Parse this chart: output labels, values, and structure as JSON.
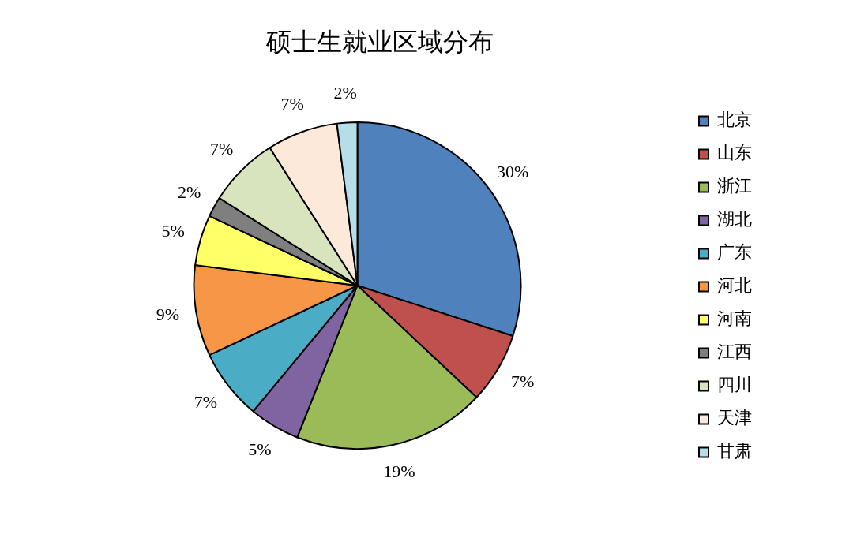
{
  "chart_data": {
    "type": "pie",
    "title": "硕士生就业区域分布",
    "categories": [
      "北京",
      "山东",
      "浙江",
      "湖北",
      "广东",
      "河北",
      "河南",
      "江西",
      "四川",
      "天津",
      "甘肃"
    ],
    "values": [
      30,
      7,
      19,
      5,
      7,
      9,
      5,
      2,
      7,
      7,
      2
    ],
    "value_labels": [
      "30%",
      "7%",
      "19%",
      "5%",
      "7%",
      "9%",
      "5%",
      "2%",
      "7%",
      "7%",
      "2%"
    ],
    "colors": [
      "#4f81bd",
      "#c0504d",
      "#9bbb59",
      "#8064a2",
      "#4bacc6",
      "#f79646",
      "#ffff66",
      "#7f7f7f",
      "#d7e4bd",
      "#fde9d9",
      "#b7dee8"
    ],
    "legend": "right"
  }
}
